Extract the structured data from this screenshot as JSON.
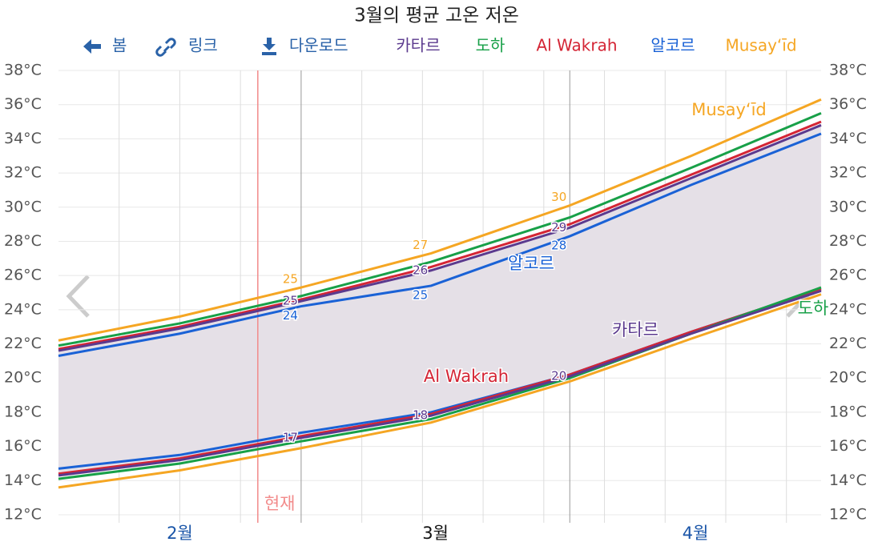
{
  "chart_data": {
    "type": "line",
    "title": "3월의 평균 고온 저온",
    "toolbar": [
      "봄",
      "링크",
      "다운로드"
    ],
    "xlim": [
      32,
      120
    ],
    "xticks": [
      {
        "value": 46,
        "label": "2월"
      },
      {
        "value": 75.5,
        "label": "3월"
      },
      {
        "value": 105.5,
        "label": "4월"
      }
    ],
    "month_boundaries": [
      60,
      91
    ],
    "xgrid": [
      39,
      46,
      53,
      67,
      74,
      81,
      88,
      95,
      102,
      109,
      116
    ],
    "now": {
      "x": 55,
      "label": "현재"
    },
    "ylim": [
      12,
      38
    ],
    "yticks": [
      {
        "value": 12,
        "label": "12°C"
      },
      {
        "value": 14,
        "label": "14°C"
      },
      {
        "value": 16,
        "label": "16°C"
      },
      {
        "value": 18,
        "label": "18°C"
      },
      {
        "value": 20,
        "label": "20°C"
      },
      {
        "value": 22,
        "label": "22°C"
      },
      {
        "value": 24,
        "label": "24°C"
      },
      {
        "value": 26,
        "label": "26°C"
      },
      {
        "value": 28,
        "label": "28°C"
      },
      {
        "value": 30,
        "label": "30°C"
      },
      {
        "value": 32,
        "label": "32°C"
      },
      {
        "value": 34,
        "label": "34°C"
      },
      {
        "value": 36,
        "label": "36°C"
      },
      {
        "value": 38,
        "label": "38°C"
      }
    ],
    "grid": true,
    "x": [
      32,
      46,
      60,
      75,
      91,
      105,
      120
    ],
    "series": [
      {
        "name": "카타르",
        "color": "#5b3a8e",
        "high": [
          21.6,
          22.9,
          24.5,
          26.3,
          28.8,
          31.7,
          34.8
        ],
        "high_labels": [
          null,
          null,
          "25",
          "26",
          "29",
          null,
          null
        ],
        "low": [
          14.3,
          15.2,
          16.5,
          17.8,
          20.1,
          22.6,
          25.1
        ],
        "low_labels": [
          null,
          null,
          "17",
          "18",
          "20",
          null,
          null
        ]
      },
      {
        "name": "도하",
        "color": "#18a048",
        "high": [
          21.9,
          23.2,
          24.8,
          26.8,
          29.4,
          32.3,
          35.5
        ],
        "low": [
          14.1,
          15.0,
          16.3,
          17.6,
          20.0,
          22.6,
          25.3
        ]
      },
      {
        "name": "Al Wakrah",
        "color": "#d42535",
        "high": [
          21.7,
          23.0,
          24.6,
          26.5,
          29.0,
          31.9,
          35.0
        ],
        "low": [
          14.4,
          15.3,
          16.6,
          17.9,
          20.2,
          22.7,
          25.2
        ]
      },
      {
        "name": "알코르",
        "color": "#1a62d6",
        "high": [
          21.3,
          22.6,
          24.2,
          25.4,
          28.3,
          31.3,
          34.3
        ],
        "high_labels": [
          null,
          null,
          "24",
          "25",
          "28",
          null,
          null
        ],
        "low": [
          14.7,
          15.5,
          16.8,
          18.0,
          20.2,
          22.7,
          25.2
        ]
      },
      {
        "name": "Musay‘īd",
        "color": "#f5a623",
        "high": [
          22.2,
          23.6,
          25.3,
          27.3,
          30.1,
          33.0,
          36.3
        ],
        "high_labels": [
          null,
          null,
          "25",
          "27",
          "30",
          null,
          null
        ],
        "low": [
          13.6,
          14.6,
          15.9,
          17.4,
          19.8,
          22.3,
          24.9
        ]
      }
    ]
  }
}
